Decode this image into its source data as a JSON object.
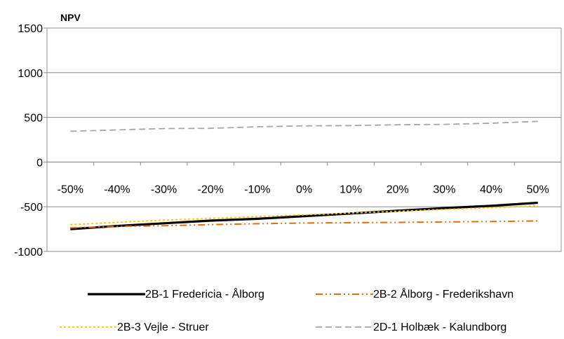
{
  "chart_data": {
    "type": "line",
    "title": "",
    "xlabel": "",
    "ylabel": "NPV",
    "ylim": [
      -1000,
      1500
    ],
    "yticks": [
      -1000,
      -500,
      0,
      500,
      1000,
      1500
    ],
    "grid": "horizontal",
    "legend_position": "bottom",
    "categories": [
      "-50%",
      "-40%",
      "-30%",
      "-20%",
      "-10%",
      "0%",
      "10%",
      "20%",
      "30%",
      "40%",
      "50%"
    ],
    "series": [
      {
        "name": "2B-1 Fredericia - Ålborg",
        "color": "#000000",
        "values": [
          -750,
          -715,
          -685,
          -655,
          -635,
          -605,
          -575,
          -545,
          -515,
          -490,
          -455
        ]
      },
      {
        "name": "2B-2 Ålborg - Frederikshavn",
        "color": "#e46c0a",
        "values": [
          -735,
          -720,
          -712,
          -700,
          -690,
          -682,
          -678,
          -675,
          -670,
          -665,
          -658
        ]
      },
      {
        "name": "2B-3 Vejle - Struer",
        "color": "#ffc000",
        "values": [
          -700,
          -675,
          -650,
          -630,
          -610,
          -590,
          -570,
          -550,
          -530,
          -510,
          -490
        ]
      },
      {
        "name": "2D-1 Holbæk - Kalundborg",
        "color": "#a6a6a6",
        "values": [
          345,
          360,
          375,
          378,
          395,
          405,
          408,
          418,
          422,
          435,
          455
        ]
      }
    ]
  }
}
